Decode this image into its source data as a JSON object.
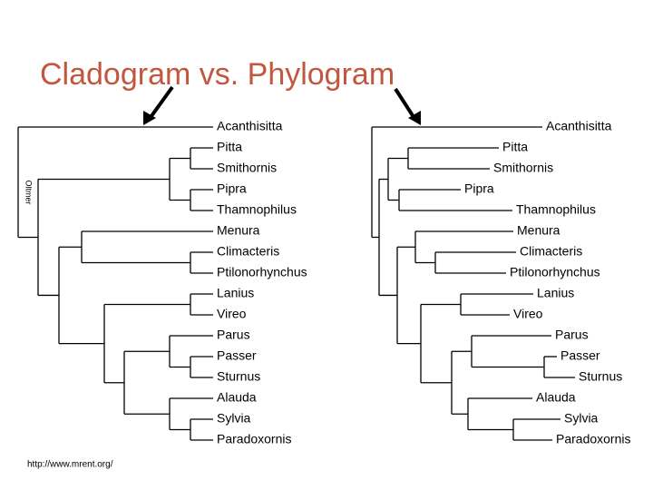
{
  "title": "Cladogram vs. Phylogram",
  "side_label": "Oltmer",
  "source": "http://www.mrent.org/",
  "trees": [
    {
      "leaves": [
        "Acanthisitta",
        "Pitta",
        "Smithornis",
        "Pipra",
        "Thamnophilus",
        "Menura",
        "Climacteris",
        "Ptilonorhynchus",
        "Lanius",
        "Vireo",
        "Parus",
        "Passer",
        "Sturnus",
        "Alauda",
        "Sylvia",
        "Paradoxornis"
      ]
    },
    {
      "leaves": [
        "Acanthisitta",
        "Pitta",
        "Smithornis",
        "Pipra",
        "Thamnophilus",
        "Menura",
        "Climacteris",
        "Ptilonorhynchus",
        "Lanius",
        "Vireo",
        "Parus",
        "Passer",
        "Sturnus",
        "Alauda",
        "Sylvia",
        "Paradoxornis"
      ]
    }
  ]
}
